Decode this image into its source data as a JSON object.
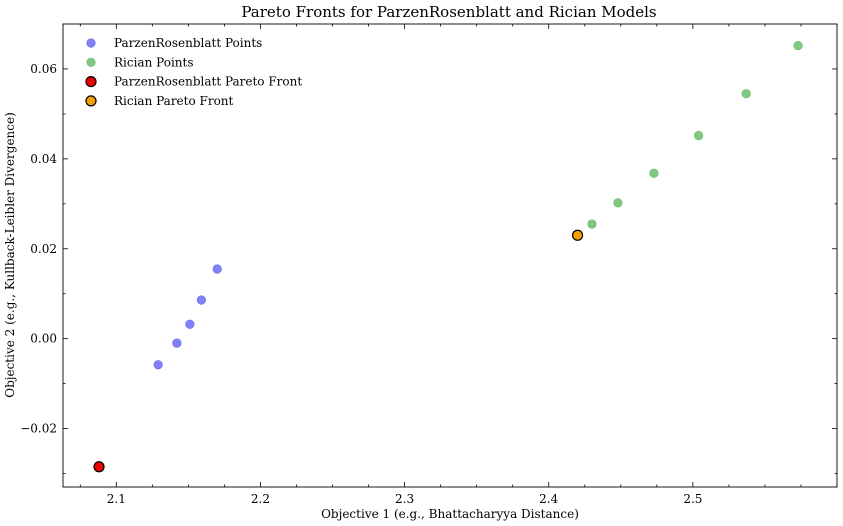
{
  "chart_data": {
    "type": "scatter",
    "title": "Pareto Fronts for ParzenRosenblatt and Rician Models",
    "xlabel": "Objective 1 (e.g., Bhattacharyya Distance)",
    "ylabel": "Objective 2 (e.g., Kullback-Leibler Divergence)",
    "xlim": [
      2.063,
      2.6
    ],
    "ylim": [
      -0.033,
      0.07
    ],
    "xticks": [
      2.1,
      2.2,
      2.3,
      2.4,
      2.5
    ],
    "xtick_labels": [
      "2.1",
      "2.2",
      "2.3",
      "2.4",
      "2.5"
    ],
    "yticks": [
      -0.02,
      0.0,
      0.02,
      0.04,
      0.06
    ],
    "ytick_labels": [
      "−0.02",
      "0.00",
      "0.02",
      "0.04",
      "0.06"
    ],
    "grid": false,
    "legend_position": "top-left",
    "series": [
      {
        "name": "ParzenRosenblatt Points",
        "color": "#6b6bf5",
        "marker": "circle",
        "points": [
          {
            "x": 2.129,
            "y": -0.0058
          },
          {
            "x": 2.142,
            "y": -0.001
          },
          {
            "x": 2.151,
            "y": 0.0032
          },
          {
            "x": 2.159,
            "y": 0.0086
          },
          {
            "x": 2.17,
            "y": 0.0155
          }
        ]
      },
      {
        "name": "Rician Points",
        "color": "#6bbd6b",
        "marker": "circle",
        "points": [
          {
            "x": 2.43,
            "y": 0.0255
          },
          {
            "x": 2.448,
            "y": 0.0302
          },
          {
            "x": 2.473,
            "y": 0.0368
          },
          {
            "x": 2.504,
            "y": 0.0452
          },
          {
            "x": 2.537,
            "y": 0.0545
          },
          {
            "x": 2.573,
            "y": 0.0652
          }
        ]
      },
      {
        "name": "ParzenRosenblatt Pareto Front",
        "color": "#ee0000",
        "edge_color": "#000000",
        "marker": "circle",
        "points": [
          {
            "x": 2.088,
            "y": -0.0285
          }
        ]
      },
      {
        "name": "Rician Pareto Front",
        "color": "#f5a000",
        "edge_color": "#000000",
        "marker": "circle",
        "points": [
          {
            "x": 2.42,
            "y": 0.023
          }
        ]
      }
    ]
  }
}
